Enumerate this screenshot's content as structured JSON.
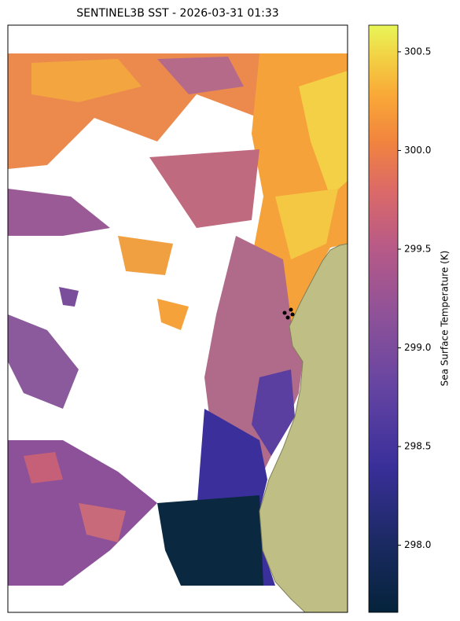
{
  "title": "SENTINEL3B SST - 2026-03-31 01:33",
  "colorbar": {
    "label": "Sea Surface Temperature (K)",
    "lim": [
      297.66,
      300.635
    ],
    "ticks": [
      {
        "value": 298.0,
        "label": "298.0"
      },
      298.5,
      {
        "value": 299.0,
        "label": "299.0"
      },
      299.5,
      {
        "value": 300.0,
        "label": "300.0"
      },
      300.5
    ]
  }
}
